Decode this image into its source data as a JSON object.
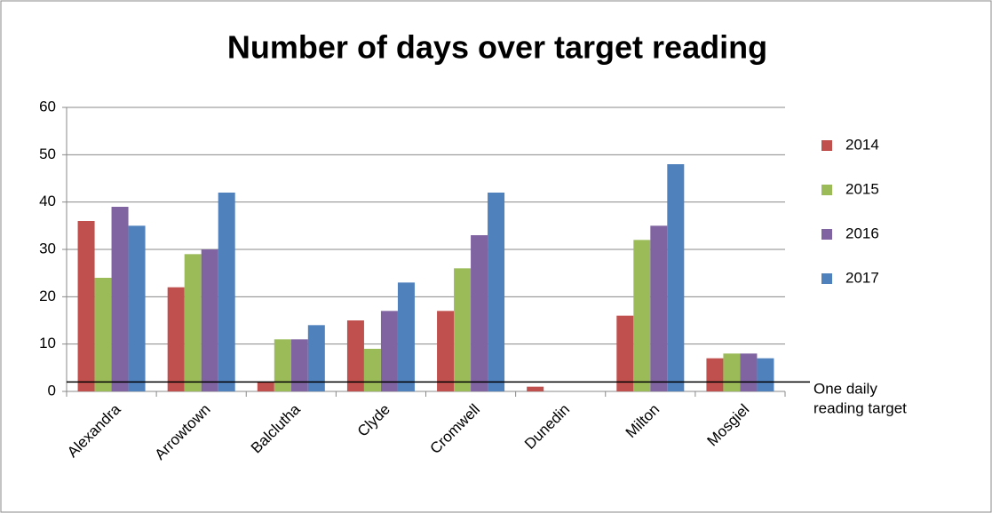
{
  "chart_data": {
    "type": "bar",
    "title": "Number of days over target reading",
    "categories": [
      "Alexandra",
      "Arrowtown",
      "Balclutha",
      "Clyde",
      "Cromwell",
      "Dunedin",
      "Milton",
      "Mosgiel"
    ],
    "series": [
      {
        "name": "2014",
        "color": "#c0504d",
        "values": [
          36,
          22,
          2,
          15,
          17,
          1,
          16,
          7
        ]
      },
      {
        "name": "2015",
        "color": "#9bbb59",
        "values": [
          24,
          29,
          11,
          9,
          26,
          0,
          32,
          8
        ]
      },
      {
        "name": "2016",
        "color": "#8064a2",
        "values": [
          39,
          30,
          11,
          17,
          33,
          0,
          35,
          8
        ]
      },
      {
        "name": "2017",
        "color": "#4f81bd",
        "values": [
          35,
          42,
          14,
          23,
          42,
          0,
          48,
          7
        ]
      }
    ],
    "ylim": [
      0,
      60
    ],
    "yticks": [
      0,
      10,
      20,
      30,
      40,
      50,
      60
    ],
    "grid": true,
    "legend": "right",
    "target_line": {
      "value": 2,
      "label": [
        "One daily",
        "reading target"
      ]
    }
  }
}
